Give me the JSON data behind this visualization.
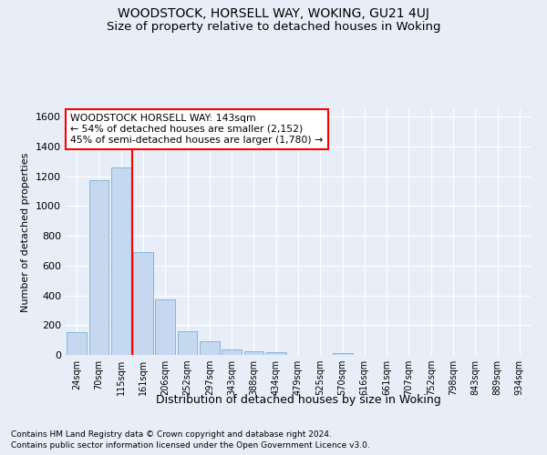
{
  "title": "WOODSTOCK, HORSELL WAY, WOKING, GU21 4UJ",
  "subtitle": "Size of property relative to detached houses in Woking",
  "xlabel": "Distribution of detached houses by size in Woking",
  "ylabel": "Number of detached properties",
  "footnote1": "Contains HM Land Registry data © Crown copyright and database right 2024.",
  "footnote2": "Contains public sector information licensed under the Open Government Licence v3.0.",
  "bar_labels": [
    "24sqm",
    "70sqm",
    "115sqm",
    "161sqm",
    "206sqm",
    "252sqm",
    "297sqm",
    "343sqm",
    "388sqm",
    "434sqm",
    "479sqm",
    "525sqm",
    "570sqm",
    "616sqm",
    "661sqm",
    "707sqm",
    "752sqm",
    "798sqm",
    "843sqm",
    "889sqm",
    "934sqm"
  ],
  "bar_values": [
    150,
    1175,
    1260,
    690,
    370,
    160,
    90,
    35,
    25,
    20,
    0,
    0,
    15,
    0,
    0,
    0,
    0,
    0,
    0,
    0,
    0
  ],
  "bar_color": "#c5d8f0",
  "bar_edge_color": "#7aafd4",
  "vline_x": 2.5,
  "vline_color": "red",
  "annotation_title": "WOODSTOCK HORSELL WAY: 143sqm",
  "annotation_line2": "← 54% of detached houses are smaller (2,152)",
  "annotation_line3": "45% of semi-detached houses are larger (1,780) →",
  "annotation_box_color": "white",
  "annotation_box_edge": "red",
  "ylim": [
    0,
    1650
  ],
  "yticks": [
    0,
    200,
    400,
    600,
    800,
    1000,
    1200,
    1400,
    1600
  ],
  "bg_color": "#e8eef7",
  "plot_bg_color": "#e8eef7",
  "title_fontsize": 10,
  "subtitle_fontsize": 9.5,
  "xlabel_fontsize": 9,
  "ylabel_fontsize": 8
}
